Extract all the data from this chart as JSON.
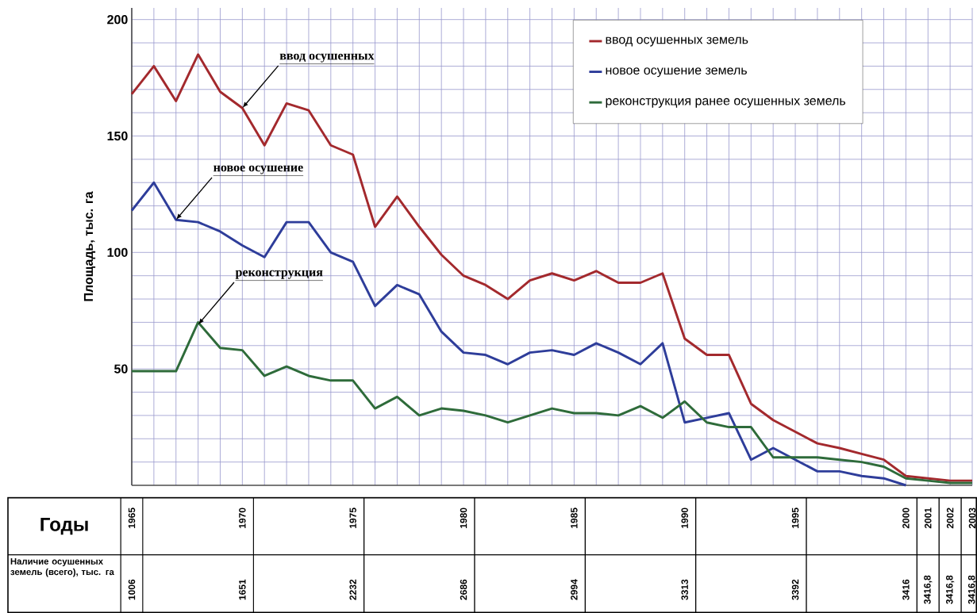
{
  "chart_data": {
    "type": "line",
    "ylabel": "Площадь, тыс. га",
    "xlabel": "Годы",
    "x": [
      1965,
      1966,
      1967,
      1968,
      1969,
      1970,
      1971,
      1972,
      1973,
      1974,
      1975,
      1976,
      1977,
      1978,
      1979,
      1980,
      1981,
      1982,
      1983,
      1984,
      1985,
      1986,
      1987,
      1988,
      1989,
      1990,
      1991,
      1992,
      1993,
      1994,
      1995,
      1996,
      1997,
      1998,
      1999,
      2000,
      2001,
      2002,
      2003
    ],
    "series": [
      {
        "name": "ввод осушенных земель",
        "color": "#a3292d",
        "values": [
          168,
          180,
          165,
          185,
          169,
          162,
          146,
          164,
          161,
          146,
          142,
          111,
          124,
          111,
          99,
          90,
          86,
          80,
          88,
          91,
          88,
          92,
          87,
          87,
          91,
          63,
          56,
          56,
          35,
          28,
          23,
          18,
          16,
          13.5,
          11,
          4,
          3,
          2,
          2
        ]
      },
      {
        "name": "новое осушение земель",
        "color": "#2e3d9a",
        "values": [
          118,
          130,
          114,
          113,
          109,
          103,
          98,
          113,
          113,
          100,
          96,
          77,
          86,
          82,
          66,
          57,
          56,
          52,
          57,
          58,
          56,
          61,
          57,
          52,
          61,
          27,
          29,
          31,
          11,
          16,
          11,
          6,
          6,
          4,
          3,
          0,
          null,
          null,
          null
        ]
      },
      {
        "name": "реконструкция ранее осушенных земель",
        "color": "#2e6b3a",
        "values": [
          49,
          49,
          49,
          70,
          59,
          58,
          47,
          51,
          47,
          45,
          45,
          33,
          38,
          30,
          33,
          32,
          30,
          27,
          30,
          33,
          31,
          31,
          30,
          34,
          29,
          36,
          27,
          25,
          25,
          12,
          12,
          12,
          11,
          10,
          8,
          3,
          2,
          1,
          1
        ]
      }
    ],
    "xlim": [
      1965,
      2003
    ],
    "ylim": [
      0,
      205
    ],
    "xticks": [
      1965,
      {
        "value": 1966,
        "label": null
      },
      {
        "value": 1967,
        "label": null
      },
      {
        "value": 1968,
        "label": null
      },
      {
        "value": 1969,
        "label": null
      },
      1970,
      {
        "value": 1971,
        "label": null
      },
      {
        "value": 1972,
        "label": null
      },
      {
        "value": 1973,
        "label": null
      },
      {
        "value": 1974,
        "label": null
      },
      1975,
      {
        "value": 1976,
        "label": null
      },
      {
        "value": 1977,
        "label": null
      },
      {
        "value": 1978,
        "label": null
      },
      {
        "value": 1979,
        "label": null
      },
      1980,
      {
        "value": 1981,
        "label": null
      },
      {
        "value": 1982,
        "label": null
      },
      {
        "value": 1983,
        "label": null
      },
      {
        "value": 1984,
        "label": null
      },
      1985,
      {
        "value": 1986,
        "label": null
      },
      {
        "value": 1987,
        "label": null
      },
      {
        "value": 1988,
        "label": null
      },
      {
        "value": 1989,
        "label": null
      },
      1990,
      {
        "value": 1991,
        "label": null
      },
      {
        "value": 1992,
        "label": null
      },
      {
        "value": 1993,
        "label": null
      },
      {
        "value": 1994,
        "label": null
      },
      1995,
      {
        "value": 1996,
        "label": null
      },
      {
        "value": 1997,
        "label": null
      },
      {
        "value": 1998,
        "label": null
      },
      {
        "value": 1999,
        "label": null
      },
      2000,
      2001,
      2002,
      2003
    ],
    "yticks": [
      {
        "value": 10,
        "label": null
      },
      {
        "value": 20,
        "label": null
      },
      {
        "value": 30,
        "label": null
      },
      {
        "value": 40,
        "label": null
      },
      50,
      {
        "value": 60,
        "label": null
      },
      {
        "value": 70,
        "label": null
      },
      {
        "value": 80,
        "label": null
      },
      {
        "value": 90,
        "label": null
      },
      100,
      {
        "value": 110,
        "label": null
      },
      {
        "value": 120,
        "label": null
      },
      {
        "value": 130,
        "label": null
      },
      {
        "value": 140,
        "label": null
      },
      150,
      {
        "value": 160,
        "label": null
      },
      {
        "value": 170,
        "label": null
      },
      {
        "value": 180,
        "label": null
      },
      {
        "value": 190,
        "label": null
      },
      200
    ],
    "grid": true,
    "legend": "top right",
    "marker": "none",
    "line_style": "solid",
    "annotations": [
      {
        "text": "ввод осушенных",
        "x": 1970,
        "y": 162
      },
      {
        "text": "новое осушение",
        "x": 1967,
        "y": 114
      },
      {
        "text": "реконструкция",
        "x": 1968,
        "y": 69
      },
      "Наличие осушенных земель (всего), тыс. га",
      "1006",
      "1651",
      "2232",
      "2686",
      "2994",
      "3313",
      "3392",
      "3416",
      "3416,8",
      "3416,8",
      "3416,8"
    ]
  }
}
